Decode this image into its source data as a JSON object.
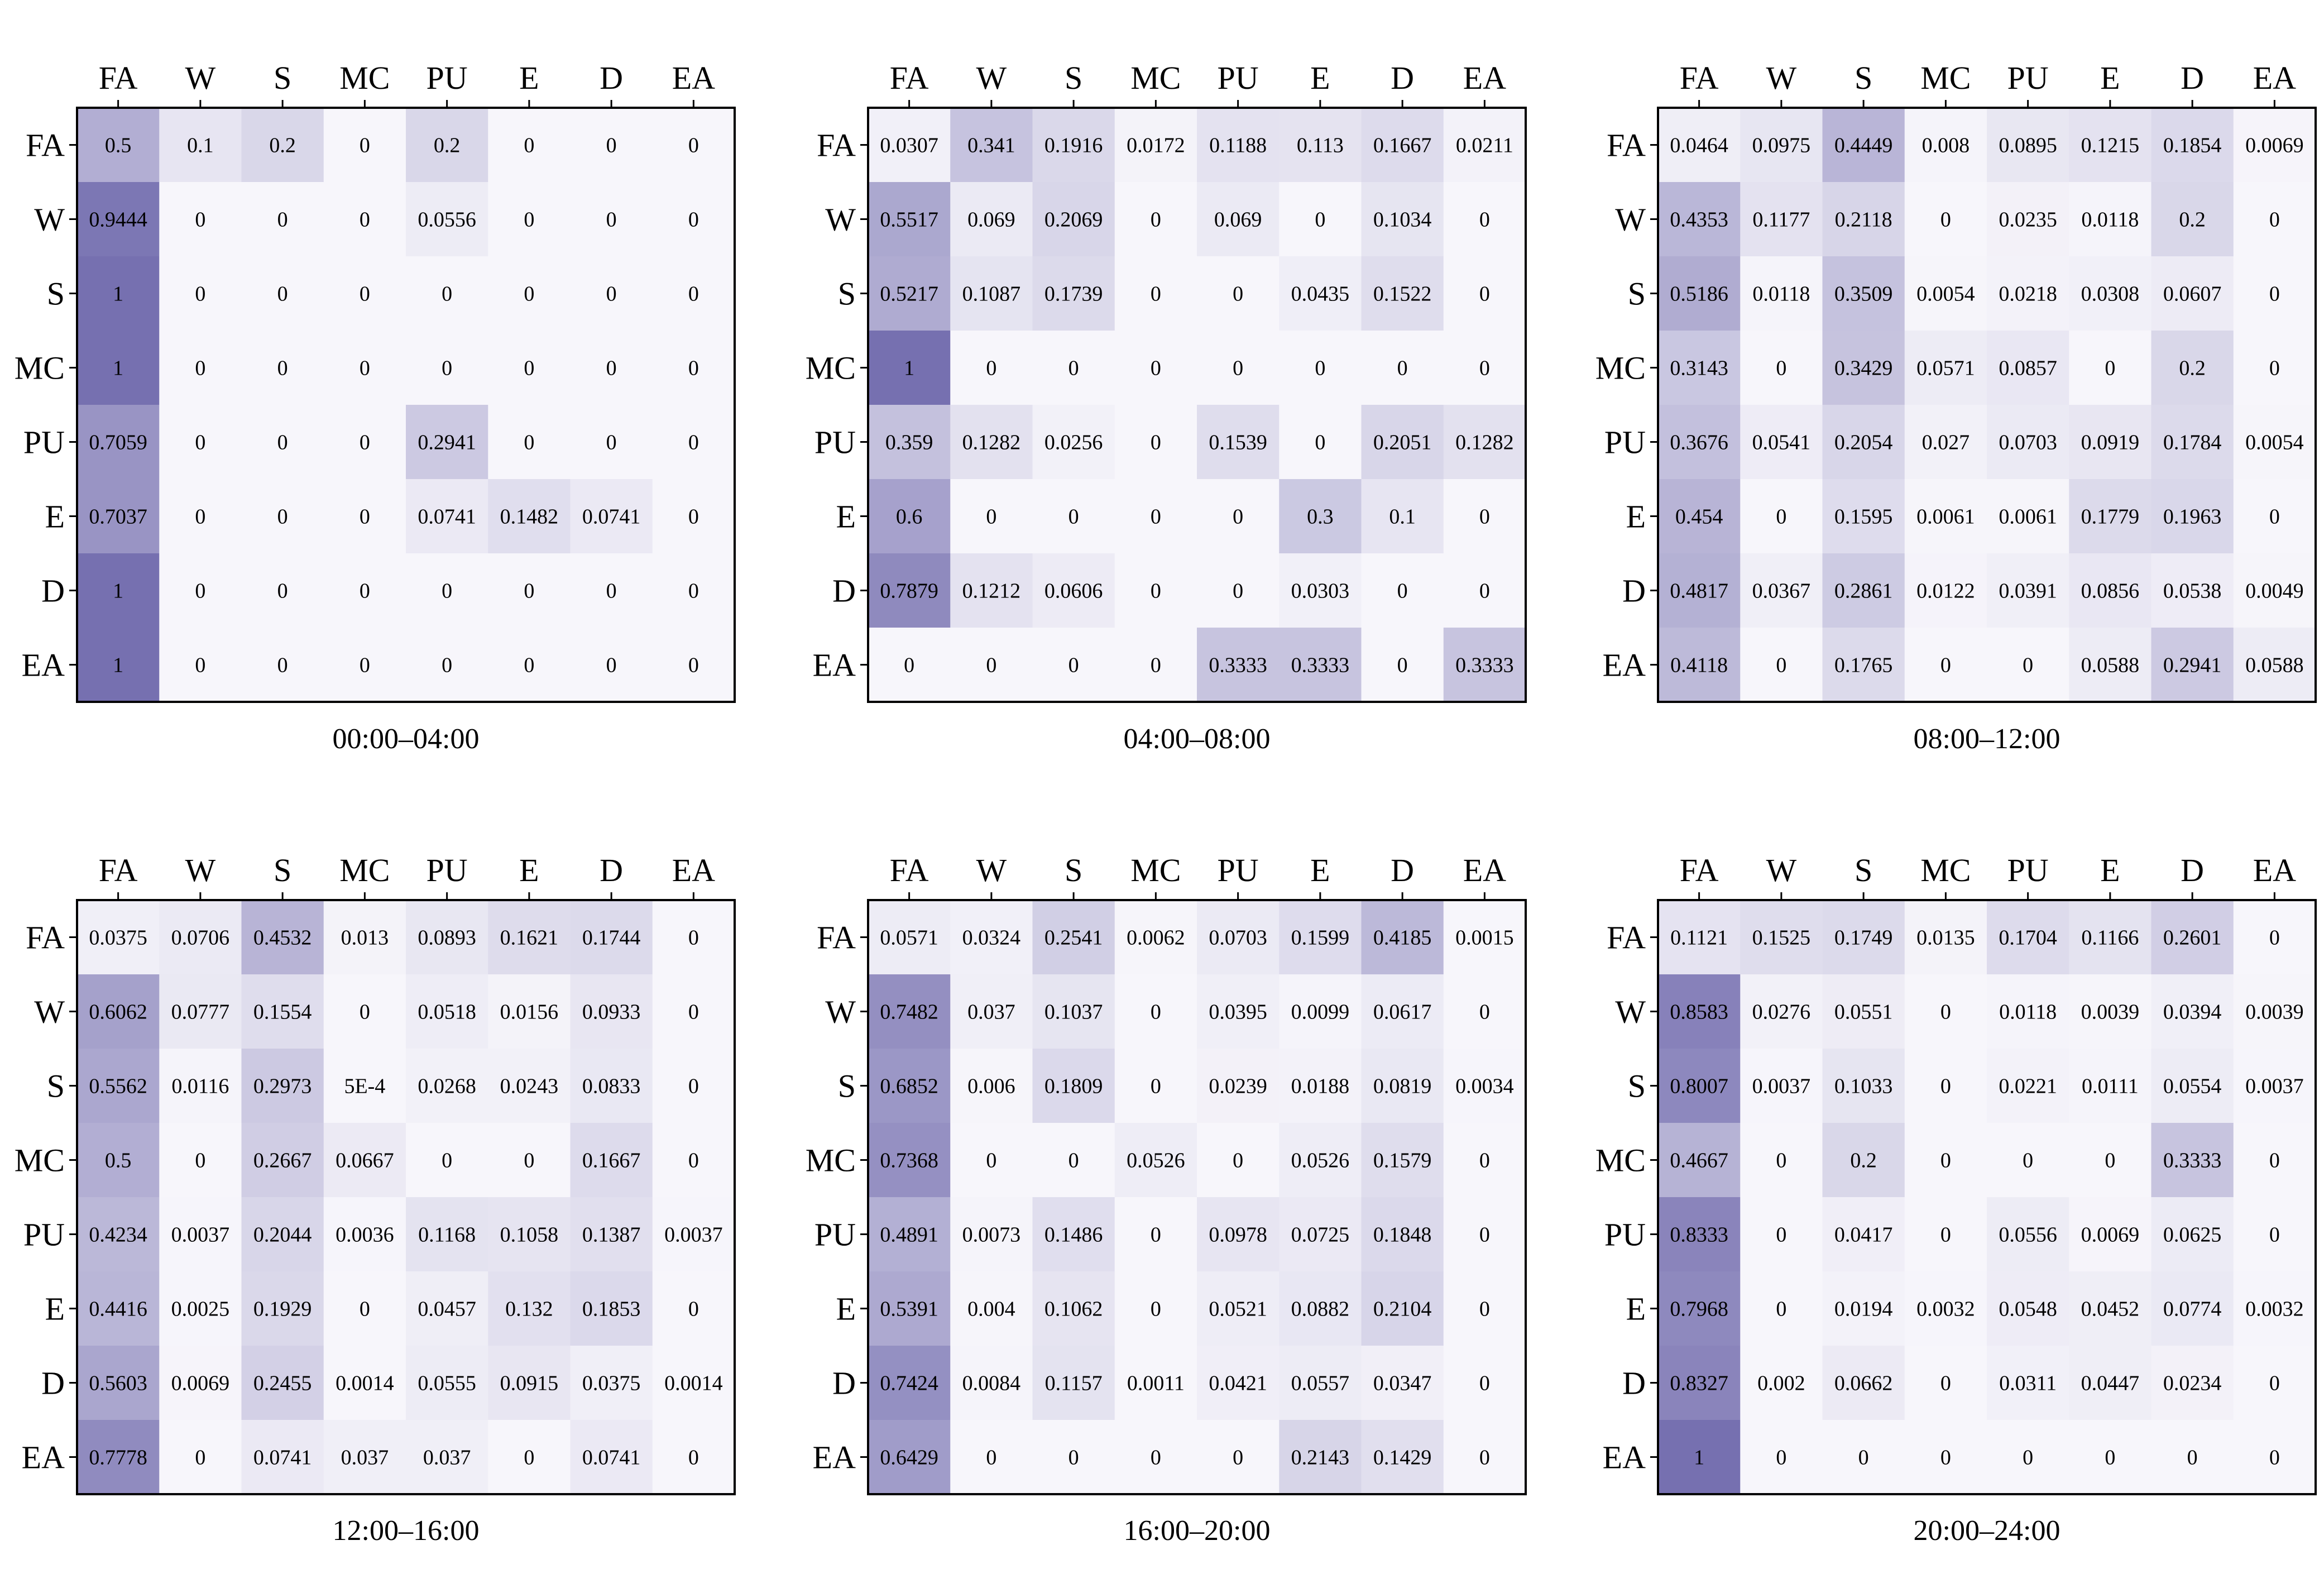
{
  "chart_data": [
    {
      "type": "heatmap",
      "title": "00:00–04:00",
      "x_labels": [
        "FA",
        "W",
        "S",
        "MC",
        "PU",
        "E",
        "D",
        "EA"
      ],
      "y_labels": [
        "FA",
        "W",
        "S",
        "MC",
        "PU",
        "E",
        "D",
        "EA"
      ],
      "matrix": [
        [
          "0.5",
          "0.1",
          "0.2",
          "0",
          "0.2",
          "0",
          "0",
          "0"
        ],
        [
          "0.9444",
          "0",
          "0",
          "0",
          "0.0556",
          "0",
          "0",
          "0"
        ],
        [
          "1",
          "0",
          "0",
          "0",
          "0",
          "0",
          "0",
          "0"
        ],
        [
          "1",
          "0",
          "0",
          "0",
          "0",
          "0",
          "0",
          "0"
        ],
        [
          "0.7059",
          "0",
          "0",
          "0",
          "0.2941",
          "0",
          "0",
          "0"
        ],
        [
          "0.7037",
          "0",
          "0",
          "0",
          "0.0741",
          "0.1482",
          "0.0741",
          "0"
        ],
        [
          "1",
          "0",
          "0",
          "0",
          "0",
          "0",
          "0",
          "0"
        ],
        [
          "1",
          "0",
          "0",
          "0",
          "0",
          "0",
          "0",
          "0"
        ]
      ]
    },
    {
      "type": "heatmap",
      "title": "04:00–08:00",
      "x_labels": [
        "FA",
        "W",
        "S",
        "MC",
        "PU",
        "E",
        "D",
        "EA"
      ],
      "y_labels": [
        "FA",
        "W",
        "S",
        "MC",
        "PU",
        "E",
        "D",
        "EA"
      ],
      "matrix": [
        [
          "0.0307",
          "0.341",
          "0.1916",
          "0.0172",
          "0.1188",
          "0.113",
          "0.1667",
          "0.0211"
        ],
        [
          "0.5517",
          "0.069",
          "0.2069",
          "0",
          "0.069",
          "0",
          "0.1034",
          "0"
        ],
        [
          "0.5217",
          "0.1087",
          "0.1739",
          "0",
          "0",
          "0.0435",
          "0.1522",
          "0"
        ],
        [
          "1",
          "0",
          "0",
          "0",
          "0",
          "0",
          "0",
          "0"
        ],
        [
          "0.359",
          "0.1282",
          "0.0256",
          "0",
          "0.1539",
          "0",
          "0.2051",
          "0.1282"
        ],
        [
          "0.6",
          "0",
          "0",
          "0",
          "0",
          "0.3",
          "0.1",
          "0"
        ],
        [
          "0.7879",
          "0.1212",
          "0.0606",
          "0",
          "0",
          "0.0303",
          "0",
          "0"
        ],
        [
          "0",
          "0",
          "0",
          "0",
          "0.3333",
          "0.3333",
          "0",
          "0.3333"
        ]
      ]
    },
    {
      "type": "heatmap",
      "title": "08:00–12:00",
      "x_labels": [
        "FA",
        "W",
        "S",
        "MC",
        "PU",
        "E",
        "D",
        "EA"
      ],
      "y_labels": [
        "FA",
        "W",
        "S",
        "MC",
        "PU",
        "E",
        "D",
        "EA"
      ],
      "matrix": [
        [
          "0.0464",
          "0.0975",
          "0.4449",
          "0.008",
          "0.0895",
          "0.1215",
          "0.1854",
          "0.0069"
        ],
        [
          "0.4353",
          "0.1177",
          "0.2118",
          "0",
          "0.0235",
          "0.0118",
          "0.2",
          "0"
        ],
        [
          "0.5186",
          "0.0118",
          "0.3509",
          "0.0054",
          "0.0218",
          "0.0308",
          "0.0607",
          "0"
        ],
        [
          "0.3143",
          "0",
          "0.3429",
          "0.0571",
          "0.0857",
          "0",
          "0.2",
          "0"
        ],
        [
          "0.3676",
          "0.0541",
          "0.2054",
          "0.027",
          "0.0703",
          "0.0919",
          "0.1784",
          "0.0054"
        ],
        [
          "0.454",
          "0",
          "0.1595",
          "0.0061",
          "0.0061",
          "0.1779",
          "0.1963",
          "0"
        ],
        [
          "0.4817",
          "0.0367",
          "0.2861",
          "0.0122",
          "0.0391",
          "0.0856",
          "0.0538",
          "0.0049"
        ],
        [
          "0.4118",
          "0",
          "0.1765",
          "0",
          "0",
          "0.0588",
          "0.2941",
          "0.0588"
        ]
      ]
    },
    {
      "type": "heatmap",
      "title": "12:00–16:00",
      "x_labels": [
        "FA",
        "W",
        "S",
        "MC",
        "PU",
        "E",
        "D",
        "EA"
      ],
      "y_labels": [
        "FA",
        "W",
        "S",
        "MC",
        "PU",
        "E",
        "D",
        "EA"
      ],
      "matrix": [
        [
          "0.0375",
          "0.0706",
          "0.4532",
          "0.013",
          "0.0893",
          "0.1621",
          "0.1744",
          "0"
        ],
        [
          "0.6062",
          "0.0777",
          "0.1554",
          "0",
          "0.0518",
          "0.0156",
          "0.0933",
          "0"
        ],
        [
          "0.5562",
          "0.0116",
          "0.2973",
          "5E-4",
          "0.0268",
          "0.0243",
          "0.0833",
          "0"
        ],
        [
          "0.5",
          "0",
          "0.2667",
          "0.0667",
          "0",
          "0",
          "0.1667",
          "0"
        ],
        [
          "0.4234",
          "0.0037",
          "0.2044",
          "0.0036",
          "0.1168",
          "0.1058",
          "0.1387",
          "0.0037"
        ],
        [
          "0.4416",
          "0.0025",
          "0.1929",
          "0",
          "0.0457",
          "0.132",
          "0.1853",
          "0"
        ],
        [
          "0.5603",
          "0.0069",
          "0.2455",
          "0.0014",
          "0.0555",
          "0.0915",
          "0.0375",
          "0.0014"
        ],
        [
          "0.7778",
          "0",
          "0.0741",
          "0.037",
          "0.037",
          "0",
          "0.0741",
          "0"
        ]
      ]
    },
    {
      "type": "heatmap",
      "title": "16:00–20:00",
      "x_labels": [
        "FA",
        "W",
        "S",
        "MC",
        "PU",
        "E",
        "D",
        "EA"
      ],
      "y_labels": [
        "FA",
        "W",
        "S",
        "MC",
        "PU",
        "E",
        "D",
        "EA"
      ],
      "matrix": [
        [
          "0.0571",
          "0.0324",
          "0.2541",
          "0.0062",
          "0.0703",
          "0.1599",
          "0.4185",
          "0.0015"
        ],
        [
          "0.7482",
          "0.037",
          "0.1037",
          "0",
          "0.0395",
          "0.0099",
          "0.0617",
          "0"
        ],
        [
          "0.6852",
          "0.006",
          "0.1809",
          "0",
          "0.0239",
          "0.0188",
          "0.0819",
          "0.0034"
        ],
        [
          "0.7368",
          "0",
          "0",
          "0.0526",
          "0",
          "0.0526",
          "0.1579",
          "0"
        ],
        [
          "0.4891",
          "0.0073",
          "0.1486",
          "0",
          "0.0978",
          "0.0725",
          "0.1848",
          "0"
        ],
        [
          "0.5391",
          "0.004",
          "0.1062",
          "0",
          "0.0521",
          "0.0882",
          "0.2104",
          "0"
        ],
        [
          "0.7424",
          "0.0084",
          "0.1157",
          "0.0011",
          "0.0421",
          "0.0557",
          "0.0347",
          "0"
        ],
        [
          "0.6429",
          "0",
          "0",
          "0",
          "0",
          "0.2143",
          "0.1429",
          "0"
        ]
      ]
    },
    {
      "type": "heatmap",
      "title": "20:00–24:00",
      "x_labels": [
        "FA",
        "W",
        "S",
        "MC",
        "PU",
        "E",
        "D",
        "EA"
      ],
      "y_labels": [
        "FA",
        "W",
        "S",
        "MC",
        "PU",
        "E",
        "D",
        "EA"
      ],
      "matrix": [
        [
          "0.1121",
          "0.1525",
          "0.1749",
          "0.0135",
          "0.1704",
          "0.1166",
          "0.2601",
          "0"
        ],
        [
          "0.8583",
          "0.0276",
          "0.0551",
          "0",
          "0.0118",
          "0.0039",
          "0.0394",
          "0.0039"
        ],
        [
          "0.8007",
          "0.0037",
          "0.1033",
          "0",
          "0.0221",
          "0.0111",
          "0.0554",
          "0.0037"
        ],
        [
          "0.4667",
          "0",
          "0.2",
          "0",
          "0",
          "0",
          "0.3333",
          "0"
        ],
        [
          "0.8333",
          "0",
          "0.0417",
          "0",
          "0.0556",
          "0.0069",
          "0.0625",
          "0"
        ],
        [
          "0.7968",
          "0",
          "0.0194",
          "0.0032",
          "0.0548",
          "0.0452",
          "0.0774",
          "0.0032"
        ],
        [
          "0.8327",
          "0.002",
          "0.0662",
          "0",
          "0.0311",
          "0.0447",
          "0.0234",
          "0"
        ],
        [
          "1",
          "0",
          "0",
          "0",
          "0",
          "0",
          "0",
          "0"
        ]
      ]
    }
  ],
  "colors": {
    "low": "#f7f6fb",
    "high": "#7670b0"
  }
}
